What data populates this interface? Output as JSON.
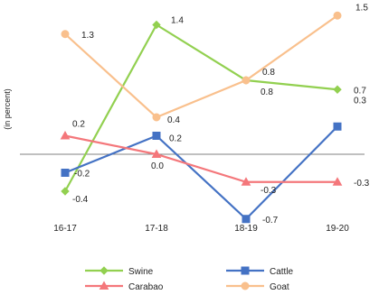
{
  "chart_data": {
    "type": "line",
    "ylabel": "(in percent)",
    "categories": [
      "16-17",
      "17-18",
      "18-19",
      "19-20"
    ],
    "ylim": [
      -1.0,
      1.6
    ],
    "grid": false,
    "legend_position": "bottom",
    "series": [
      {
        "name": "Swine",
        "color": "#92D050",
        "marker": "diamond",
        "values": [
          -0.4,
          1.4,
          0.8,
          0.7
        ],
        "labels": [
          "-0.4",
          "1.4",
          "0.8",
          "0.7"
        ]
      },
      {
        "name": "Cattle",
        "color": "#4472C4",
        "marker": "square",
        "values": [
          -0.2,
          0.2,
          -0.7,
          0.3
        ],
        "labels": [
          "-0.2",
          "0.2",
          "-0.7",
          "0.3"
        ]
      },
      {
        "name": "Carabao",
        "color": "#F4777B",
        "marker": "triangle",
        "values": [
          0.2,
          0.0,
          -0.3,
          -0.3
        ],
        "labels": [
          "0.2",
          "0.0",
          "-0.3",
          "-0.3"
        ]
      },
      {
        "name": "Goat",
        "color": "#F9C08D",
        "marker": "circle",
        "values": [
          1.3,
          0.4,
          0.8,
          1.5
        ],
        "labels": [
          "1.3",
          "0.4",
          "0.8",
          "1.5"
        ]
      }
    ]
  }
}
